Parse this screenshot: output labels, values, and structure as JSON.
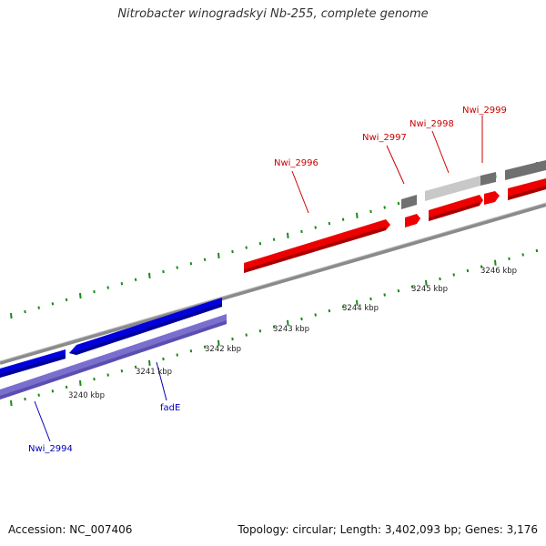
{
  "title": "Nitrobacter winogradskyi Nb-255, complete genome",
  "footer": {
    "accession": "Accession: NC_007406",
    "summary": "Topology: circular; Length: 3,402,093 bp; Genes: 3,176"
  },
  "colors": {
    "forward_cds": "#ee0000",
    "reverse_cds_dark": "#0000dd",
    "reverse_cds_light": "#7a6fcf",
    "rna_dark": "#707070",
    "rna_light": "#c8c8c8",
    "backbone": "#8a8a8a",
    "tick": "#1a8a1a",
    "label_forward": "#cc0000",
    "label_reverse": "#0000bb"
  },
  "scale_labels": [
    "3240 kbp",
    "3241 kbp",
    "3242 kbp",
    "3243 kbp",
    "3244 kbp",
    "3245 kbp",
    "3246 kbp"
  ],
  "gene_labels": {
    "forward": [
      "Nwi_2996",
      "Nwi_2997",
      "Nwi_2998",
      "Nwi_2999"
    ],
    "reverse": [
      "Nwi_2994",
      "fadE"
    ]
  }
}
